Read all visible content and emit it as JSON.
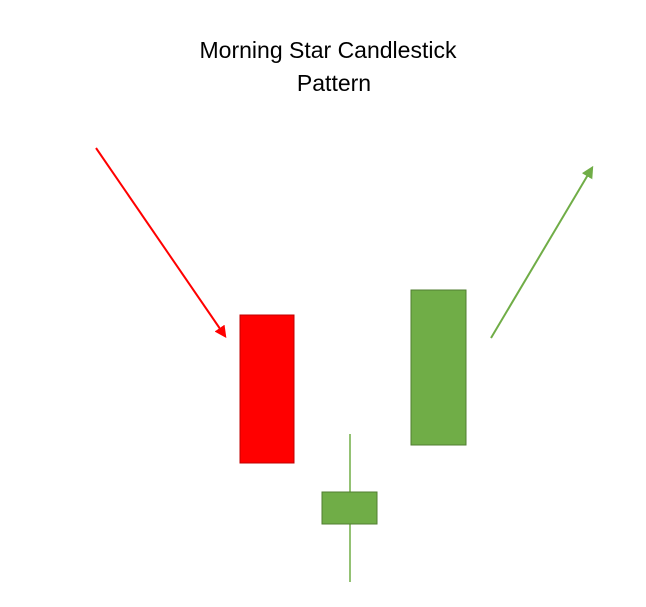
{
  "title": {
    "line1": "Morning Star Candlestick",
    "line2": "Pattern"
  },
  "colors": {
    "bearish": "#ff0000",
    "bearish_border": "#c00000",
    "bullish": "#70ad47",
    "bullish_border": "#507e32",
    "background": "#ffffff"
  },
  "elements": {
    "downtrend_arrow": "arrow-down-right-icon",
    "uptrend_arrow": "arrow-up-right-icon"
  }
}
